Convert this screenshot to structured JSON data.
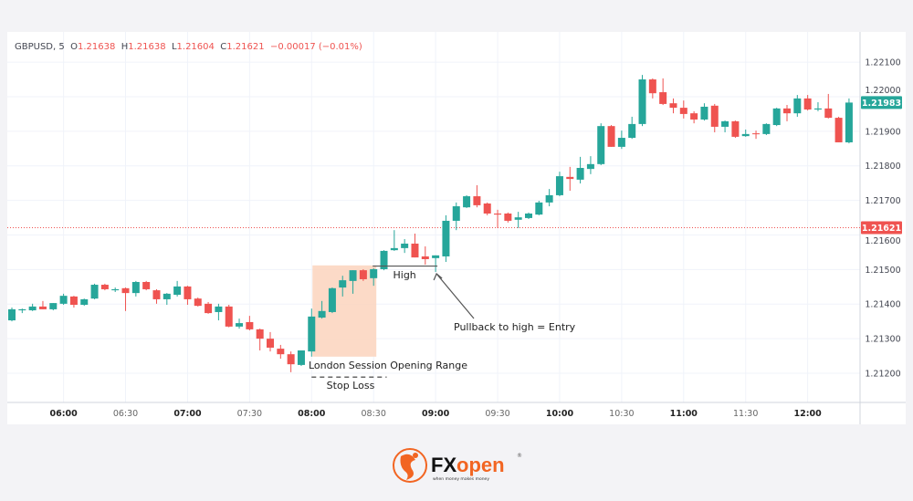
{
  "chart_data": {
    "type": "candlestick",
    "symbol": "GBPUSD",
    "interval": "5",
    "legend": {
      "open": "1.21638",
      "high": "1.21638",
      "low": "1.21604",
      "close": "1.21621",
      "change": "−0.00017 (−0.01%)"
    },
    "ylim": [
      1.2116,
      1.2222
    ],
    "y_ticks": [
      "1.22100",
      "1.22000",
      "1.21900",
      "1.21800",
      "1.21700",
      "1.21600",
      "1.21500",
      "1.21400",
      "1.21300",
      "1.21200"
    ],
    "x_ticks": [
      "06:00",
      "06:30",
      "07:00",
      "07:30",
      "08:00",
      "08:30",
      "09:00",
      "09:30",
      "10:00",
      "10:30",
      "11:00",
      "11:30",
      "12:00"
    ],
    "grid": true,
    "last_price": {
      "value": 1.21983,
      "label": "1.21983",
      "color": "#26a69a"
    },
    "hover_price": {
      "value": 1.21621,
      "label": "1.21621",
      "color": "#ef5350"
    },
    "colors": {
      "up": "#26a69a",
      "down": "#ef5350"
    },
    "columns": [
      "time",
      "open",
      "high",
      "low",
      "close"
    ],
    "candles": [
      [
        "05:35",
        1.21353,
        1.2139,
        1.2135,
        1.21385
      ],
      [
        "05:40",
        1.21382,
        1.21387,
        1.21374,
        1.21385
      ],
      [
        "05:45",
        1.21382,
        1.21401,
        1.2138,
        1.21393
      ],
      [
        "05:50",
        1.21393,
        1.21409,
        1.21385,
        1.21385
      ],
      [
        "05:55",
        1.21385,
        1.21403,
        1.21382,
        1.21403
      ],
      [
        "06:00",
        1.21401,
        1.2143,
        1.21398,
        1.21424
      ],
      [
        "06:05",
        1.21422,
        1.21424,
        1.2139,
        1.21398
      ],
      [
        "06:10",
        1.21398,
        1.21416,
        1.21395,
        1.21414
      ],
      [
        "06:15",
        1.21416,
        1.21459,
        1.21414,
        1.21456
      ],
      [
        "06:20",
        1.21456,
        1.21459,
        1.2144,
        1.21443
      ],
      [
        "06:25",
        1.2144,
        1.21448,
        1.21435,
        1.21443
      ],
      [
        "06:30",
        1.21446,
        1.21448,
        1.2138,
        1.21432
      ],
      [
        "06:35",
        1.21432,
        1.21467,
        1.21422,
        1.21464
      ],
      [
        "06:40",
        1.21464,
        1.21467,
        1.2144,
        1.21443
      ],
      [
        "06:45",
        1.2144,
        1.21443,
        1.21401,
        1.21414
      ],
      [
        "06:50",
        1.21414,
        1.21432,
        1.21398,
        1.2143
      ],
      [
        "06:55",
        1.21427,
        1.21467,
        1.21422,
        1.21451
      ],
      [
        "07:00",
        1.21451,
        1.21453,
        1.21398,
        1.21414
      ],
      [
        "07:05",
        1.21416,
        1.21419,
        1.21393,
        1.21395
      ],
      [
        "07:10",
        1.21401,
        1.21406,
        1.21372,
        1.21374
      ],
      [
        "07:15",
        1.21377,
        1.21401,
        1.21353,
        1.21393
      ],
      [
        "07:20",
        1.21393,
        1.21398,
        1.21333,
        1.21335
      ],
      [
        "07:25",
        1.21335,
        1.21358,
        1.21329,
        1.21345
      ],
      [
        "07:30",
        1.21348,
        1.21366,
        1.21324,
        1.21327
      ],
      [
        "07:35",
        1.21327,
        1.21329,
        1.21266,
        1.213
      ],
      [
        "07:40",
        1.213,
        1.21319,
        1.21263,
        1.21274
      ],
      [
        "07:45",
        1.21271,
        1.21282,
        1.21242,
        1.21255
      ],
      [
        "07:50",
        1.21255,
        1.21263,
        1.21203,
        1.21226
      ],
      [
        "07:55",
        1.21224,
        1.21266,
        1.21221,
        1.21266
      ],
      [
        "08:00",
        1.21263,
        1.21387,
        1.21248,
        1.21364
      ],
      [
        "08:05",
        1.21361,
        1.21409,
        1.21358,
        1.2138
      ],
      [
        "08:10",
        1.21377,
        1.21448,
        1.21374,
        1.21446
      ],
      [
        "08:15",
        1.21448,
        1.21482,
        1.21422,
        1.21469
      ],
      [
        "08:20",
        1.21467,
        1.21498,
        1.2143,
        1.21498
      ],
      [
        "08:25",
        1.21498,
        1.21501,
        1.21467,
        1.21472
      ],
      [
        "08:30",
        1.21475,
        1.21504,
        1.21453,
        1.21501
      ],
      [
        "08:35",
        1.21501,
        1.21556,
        1.21498,
        1.21554
      ],
      [
        "08:40",
        1.21556,
        1.21614,
        1.21554,
        1.21562
      ],
      [
        "08:45",
        1.21562,
        1.21588,
        1.21548,
        1.21575
      ],
      [
        "08:50",
        1.21575,
        1.21604,
        1.21535,
        1.21535
      ],
      [
        "08:55",
        1.21538,
        1.21567,
        1.21514,
        1.2153
      ],
      [
        "09:00",
        1.21533,
        1.21541,
        1.21493,
        1.21541
      ],
      [
        "09:05",
        1.21538,
        1.21657,
        1.21522,
        1.21641
      ],
      [
        "09:10",
        1.21641,
        1.21694,
        1.21614,
        1.21683
      ],
      [
        "09:15",
        1.2168,
        1.21715,
        1.21678,
        1.21712
      ],
      [
        "09:20",
        1.21712,
        1.21744,
        1.2168,
        1.21686
      ],
      [
        "09:25",
        1.21691,
        1.21694,
        1.21657,
        1.21662
      ],
      [
        "09:30",
        1.21662,
        1.21673,
        1.2162,
        1.21659
      ],
      [
        "09:35",
        1.21662,
        1.21665,
        1.21636,
        1.21641
      ],
      [
        "09:40",
        1.21644,
        1.21667,
        1.2162,
        1.21651
      ],
      [
        "09:45",
        1.21649,
        1.21665,
        1.21646,
        1.21662
      ],
      [
        "09:50",
        1.21659,
        1.21699,
        1.21657,
        1.21694
      ],
      [
        "09:55",
        1.21694,
        1.21733,
        1.21683,
        1.21715
      ],
      [
        "10:00",
        1.21715,
        1.21783,
        1.21712,
        1.2177
      ],
      [
        "10:05",
        1.21768,
        1.21797,
        1.21728,
        1.21762
      ],
      [
        "10:10",
        1.2176,
        1.21826,
        1.21749,
        1.21794
      ],
      [
        "10:15",
        1.21791,
        1.21828,
        1.21776,
        1.21805
      ],
      [
        "10:20",
        1.21805,
        1.21923,
        1.21802,
        1.21915
      ],
      [
        "10:25",
        1.21915,
        1.21918,
        1.21855,
        1.21855
      ],
      [
        "10:30",
        1.21855,
        1.21902,
        1.21849,
        1.21881
      ],
      [
        "10:35",
        1.21881,
        1.21942,
        1.21878,
        1.21921
      ],
      [
        "10:40",
        1.21921,
        1.22063,
        1.21915,
        1.2205
      ],
      [
        "10:45",
        1.2205,
        1.22053,
        1.21995,
        1.2201
      ],
      [
        "10:50",
        1.22013,
        1.22053,
        1.21976,
        1.21979
      ],
      [
        "10:55",
        1.21981,
        1.21995,
        1.21952,
        1.21968
      ],
      [
        "11:00",
        1.21968,
        1.21989,
        1.21937,
        1.2195
      ],
      [
        "11:05",
        1.21952,
        1.21958,
        1.21923,
        1.21934
      ],
      [
        "11:10",
        1.21934,
        1.21981,
        1.21931,
        1.21971
      ],
      [
        "11:15",
        1.21974,
        1.21979,
        1.21897,
        1.21913
      ],
      [
        "11:20",
        1.21913,
        1.21931,
        1.21897,
        1.21929
      ],
      [
        "11:25",
        1.21929,
        1.21931,
        1.21881,
        1.21884
      ],
      [
        "11:30",
        1.21886,
        1.21905,
        1.21884,
        1.21892
      ],
      [
        "11:35",
        1.21894,
        1.21902,
        1.21878,
        1.21892
      ],
      [
        "11:40",
        1.21892,
        1.21923,
        1.21889,
        1.21921
      ],
      [
        "11:45",
        1.21918,
        1.21968,
        1.21915,
        1.21966
      ],
      [
        "11:50",
        1.21966,
        1.21976,
        1.21929,
        1.21952
      ],
      [
        "11:55",
        1.21952,
        1.22005,
        1.21942,
        1.21995
      ],
      [
        "12:00",
        1.21995,
        1.22005,
        1.2196,
        1.21963
      ],
      [
        "12:05",
        1.21963,
        1.21984,
        1.21958,
        1.21966
      ],
      [
        "12:10",
        1.21966,
        1.22008,
        1.21937,
        1.21939
      ],
      [
        "12:15",
        1.21939,
        1.21942,
        1.21868,
        1.21868
      ],
      [
        "12:20",
        1.21868,
        1.21995,
        1.21865,
        1.21983
      ]
    ],
    "annotations": {
      "opening_range": {
        "label": "London Session Opening Range",
        "time_from": "08:00",
        "time_to": "08:30",
        "price_top": 1.21512,
        "price_bottom": 1.21248,
        "color": "#fbd3bd"
      },
      "high_line": {
        "label": "High",
        "price": 1.2151,
        "time_from": "08:30",
        "time_to": "09:00"
      },
      "stop_loss": {
        "label": "Stop Loss",
        "price": 1.21189,
        "time_from": "08:00",
        "time_to": "08:35"
      },
      "entry": {
        "label": "Pullback to high = Entry",
        "time": "09:00",
        "price": 1.21493
      }
    }
  },
  "brand": {
    "name": "FXopen",
    "tagline": "when money makes money",
    "color": "#f26522"
  }
}
